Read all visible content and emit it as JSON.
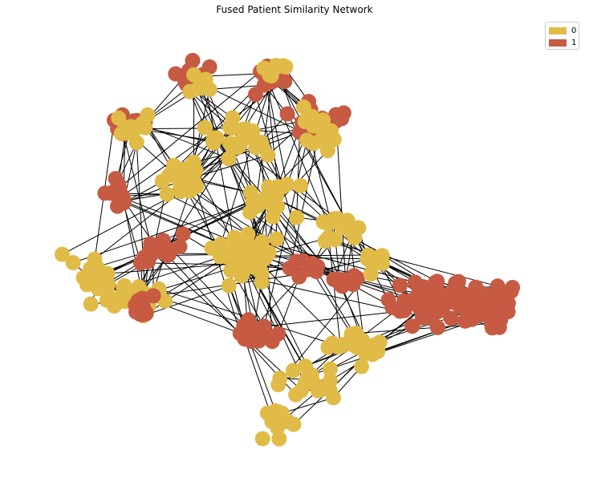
{
  "chart_data": {
    "type": "network",
    "title": "Fused Patient Similarity Network",
    "legend": {
      "placement": "top-right",
      "entries": [
        {
          "label": "0",
          "color": "#e0bb47"
        },
        {
          "label": "1",
          "color": "#c65a43"
        }
      ]
    },
    "edge_color": "#000000",
    "grid": false,
    "axes": false,
    "classes": [
      {
        "label": "0",
        "approx_node_count": 300
      },
      {
        "label": "1",
        "approx_node_count": 260
      }
    ]
  }
}
